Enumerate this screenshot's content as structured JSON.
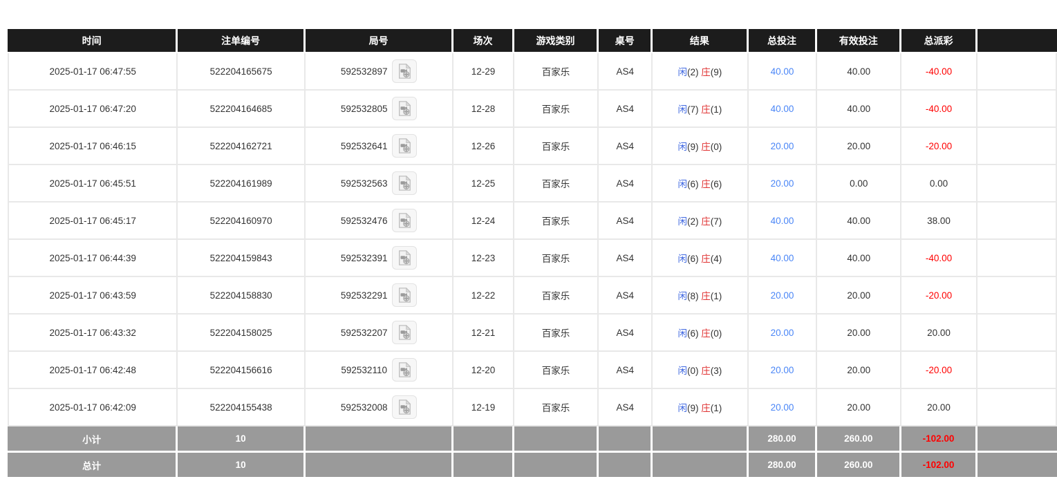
{
  "table": {
    "columns": [
      {
        "key": "time",
        "label": "时间"
      },
      {
        "key": "bet-id",
        "label": "注单编号"
      },
      {
        "key": "round",
        "label": "局号"
      },
      {
        "key": "session",
        "label": "场次"
      },
      {
        "key": "game-type",
        "label": "游戏类别"
      },
      {
        "key": "table-no",
        "label": "桌号"
      },
      {
        "key": "result",
        "label": "结果"
      },
      {
        "key": "total-bet",
        "label": "总投注"
      },
      {
        "key": "valid-bet",
        "label": "有效投注"
      },
      {
        "key": "payout",
        "label": "总派彩"
      },
      {
        "key": "extra",
        "label": ""
      }
    ],
    "rows": [
      {
        "time": "2025-01-17 06:47:55",
        "bet_id": "522204165675",
        "round": "592532897",
        "session": "12-29",
        "game_type": "百家乐",
        "table_no": "AS4",
        "result_player": "闲",
        "result_player_score": "(2)",
        "result_banker": "庄",
        "result_banker_score": "(9)",
        "total_bet": "40.00",
        "valid_bet": "40.00",
        "payout": "-40.00"
      },
      {
        "time": "2025-01-17 06:47:20",
        "bet_id": "522204164685",
        "round": "592532805",
        "session": "12-28",
        "game_type": "百家乐",
        "table_no": "AS4",
        "result_player": "闲",
        "result_player_score": "(7)",
        "result_banker": "庄",
        "result_banker_score": "(1)",
        "total_bet": "40.00",
        "valid_bet": "40.00",
        "payout": "-40.00"
      },
      {
        "time": "2025-01-17 06:46:15",
        "bet_id": "522204162721",
        "round": "592532641",
        "session": "12-26",
        "game_type": "百家乐",
        "table_no": "AS4",
        "result_player": "闲",
        "result_player_score": "(9)",
        "result_banker": "庄",
        "result_banker_score": "(0)",
        "total_bet": "20.00",
        "valid_bet": "20.00",
        "payout": "-20.00"
      },
      {
        "time": "2025-01-17 06:45:51",
        "bet_id": "522204161989",
        "round": "592532563",
        "session": "12-25",
        "game_type": "百家乐",
        "table_no": "AS4",
        "result_player": "闲",
        "result_player_score": "(6)",
        "result_banker": "庄",
        "result_banker_score": "(6)",
        "total_bet": "20.00",
        "valid_bet": "0.00",
        "payout": "0.00"
      },
      {
        "time": "2025-01-17 06:45:17",
        "bet_id": "522204160970",
        "round": "592532476",
        "session": "12-24",
        "game_type": "百家乐",
        "table_no": "AS4",
        "result_player": "闲",
        "result_player_score": "(2)",
        "result_banker": "庄",
        "result_banker_score": "(7)",
        "total_bet": "40.00",
        "valid_bet": "40.00",
        "payout": "38.00"
      },
      {
        "time": "2025-01-17 06:44:39",
        "bet_id": "522204159843",
        "round": "592532391",
        "session": "12-23",
        "game_type": "百家乐",
        "table_no": "AS4",
        "result_player": "闲",
        "result_player_score": "(6)",
        "result_banker": "庄",
        "result_banker_score": "(4)",
        "total_bet": "40.00",
        "valid_bet": "40.00",
        "payout": "-40.00"
      },
      {
        "time": "2025-01-17 06:43:59",
        "bet_id": "522204158830",
        "round": "592532291",
        "session": "12-22",
        "game_type": "百家乐",
        "table_no": "AS4",
        "result_player": "闲",
        "result_player_score": "(8)",
        "result_banker": "庄",
        "result_banker_score": "(1)",
        "total_bet": "20.00",
        "valid_bet": "20.00",
        "payout": "-20.00"
      },
      {
        "time": "2025-01-17 06:43:32",
        "bet_id": "522204158025",
        "round": "592532207",
        "session": "12-21",
        "game_type": "百家乐",
        "table_no": "AS4",
        "result_player": "闲",
        "result_player_score": "(6)",
        "result_banker": "庄",
        "result_banker_score": "(0)",
        "total_bet": "20.00",
        "valid_bet": "20.00",
        "payout": "20.00"
      },
      {
        "time": "2025-01-17 06:42:48",
        "bet_id": "522204156616",
        "round": "592532110",
        "session": "12-20",
        "game_type": "百家乐",
        "table_no": "AS4",
        "result_player": "闲",
        "result_player_score": "(0)",
        "result_banker": "庄",
        "result_banker_score": "(3)",
        "total_bet": "20.00",
        "valid_bet": "20.00",
        "payout": "-20.00"
      },
      {
        "time": "2025-01-17 06:42:09",
        "bet_id": "522204155438",
        "round": "592532008",
        "session": "12-19",
        "game_type": "百家乐",
        "table_no": "AS4",
        "result_player": "闲",
        "result_player_score": "(9)",
        "result_banker": "庄",
        "result_banker_score": "(1)",
        "total_bet": "20.00",
        "valid_bet": "20.00",
        "payout": "20.00"
      }
    ],
    "footer_rows": [
      {
        "label": "小计",
        "count": "10",
        "total_bet": "280.00",
        "valid_bet": "260.00",
        "payout": "-102.00"
      },
      {
        "label": "总计",
        "count": "10",
        "total_bet": "280.00",
        "valid_bet": "260.00",
        "payout": "-102.00"
      }
    ],
    "colors": {
      "header_bg": "#1c1c1c",
      "header_text": "#ffffff",
      "body_text": "#333333",
      "cell_border": "#e8e8e8",
      "player_blue": "#4169e1",
      "banker_red": "#e03333",
      "total_bet_blue": "#4a86f7",
      "negative_red": "#ff0000",
      "footer_bg": "#9a9a9a",
      "footer_text": "#ffffff"
    }
  }
}
